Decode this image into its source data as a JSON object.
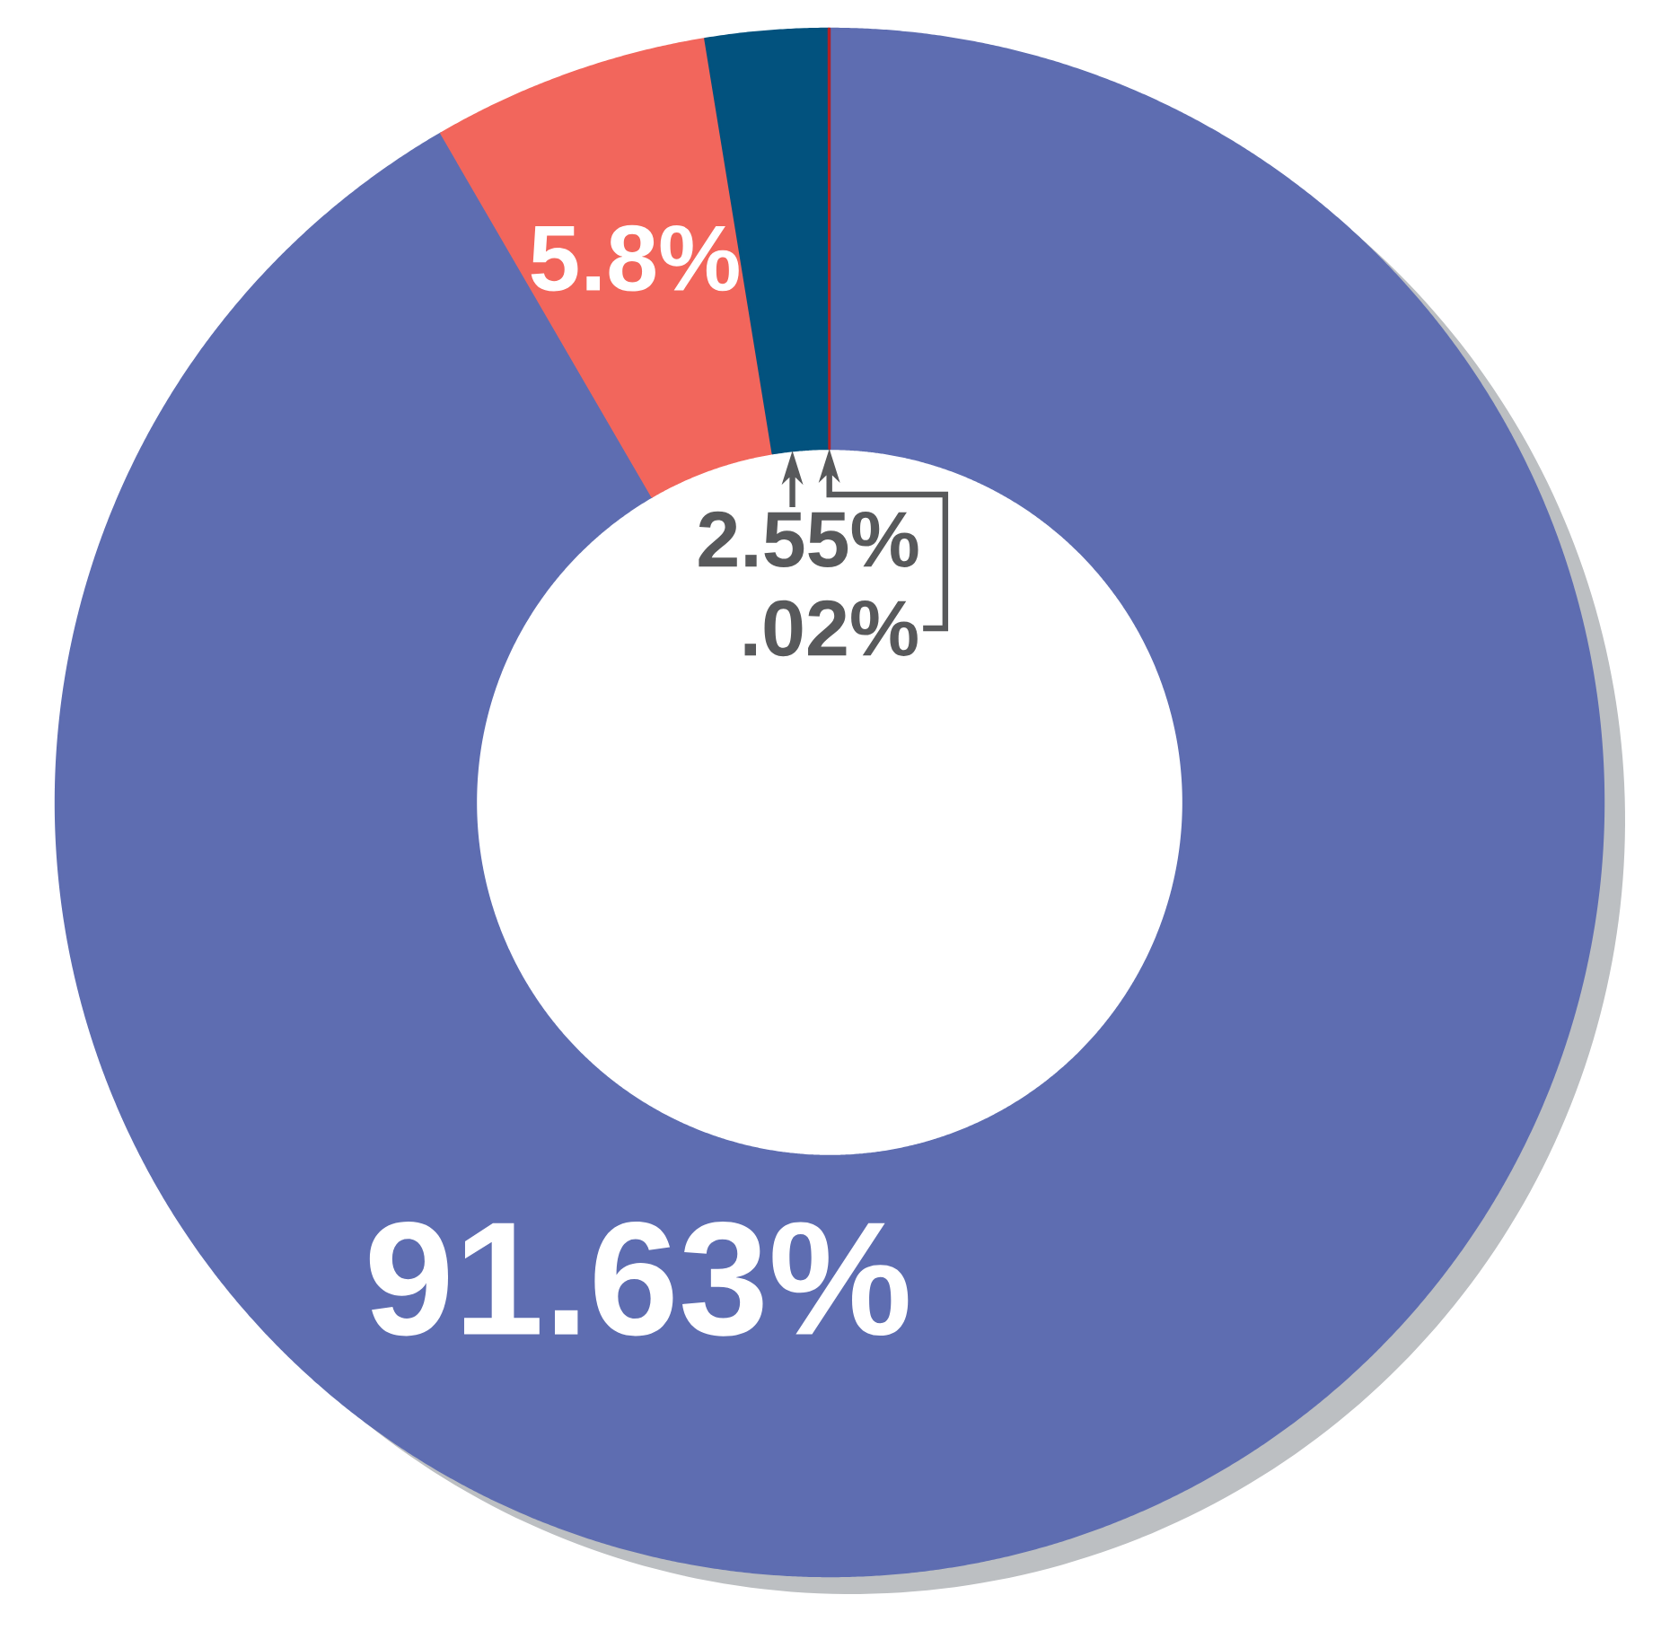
{
  "chart_data": {
    "type": "donut",
    "categories": [
      null,
      null,
      null,
      null
    ],
    "values": [
      91.63,
      5.8,
      2.55,
      0.02
    ],
    "colors": [
      "#5e6db1",
      "#f2665c",
      "#02527e",
      "#b32025"
    ],
    "value_labels": [
      "91.63%",
      "5.8%",
      "2.55%",
      ".02%"
    ]
  }
}
